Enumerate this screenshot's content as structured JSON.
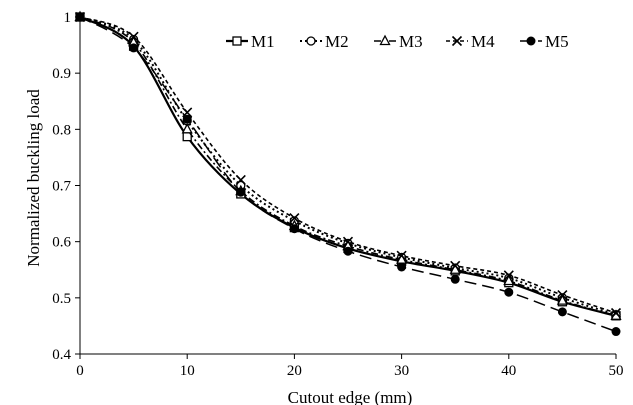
{
  "chart_data": {
    "type": "line",
    "xlabel": "Cutout edge (mm)",
    "ylabel": "Normalized buckling load",
    "xlim": [
      0,
      50
    ],
    "ylim": [
      0.4,
      1
    ],
    "x_ticks": [
      "0",
      "10",
      "20",
      "30",
      "40",
      "50"
    ],
    "y_ticks": [
      "0.4",
      "0.5",
      "0.6",
      "0.7",
      "0.8",
      "0.9",
      "1"
    ],
    "grid": false,
    "legend_position": "top-right",
    "x": [
      0,
      5,
      10,
      15,
      20,
      25,
      30,
      35,
      40,
      45,
      50
    ],
    "series": [
      {
        "name": "M1",
        "marker": "square-open",
        "line": "solid",
        "values": [
          1.0,
          0.948,
          0.787,
          0.685,
          0.625,
          0.588,
          0.565,
          0.548,
          0.527,
          0.493,
          0.468
        ]
      },
      {
        "name": "M2",
        "marker": "circle-open",
        "line": "dotted",
        "values": [
          1.0,
          0.96,
          0.815,
          0.7,
          0.637,
          0.597,
          0.572,
          0.553,
          0.535,
          0.5,
          0.47
        ]
      },
      {
        "name": "M3",
        "marker": "triangle-open",
        "line": "dash-dot",
        "values": [
          1.0,
          0.955,
          0.8,
          0.69,
          0.628,
          0.592,
          0.568,
          0.55,
          0.53,
          0.495,
          0.468
        ]
      },
      {
        "name": "M4",
        "marker": "x",
        "line": "dash",
        "values": [
          1.0,
          0.965,
          0.83,
          0.71,
          0.642,
          0.6,
          0.575,
          0.557,
          0.54,
          0.505,
          0.473
        ]
      },
      {
        "name": "M5",
        "marker": "circle-filled",
        "line": "long-dash",
        "values": [
          1.0,
          0.945,
          0.818,
          0.688,
          0.623,
          0.583,
          0.555,
          0.533,
          0.51,
          0.475,
          0.44
        ]
      }
    ]
  }
}
